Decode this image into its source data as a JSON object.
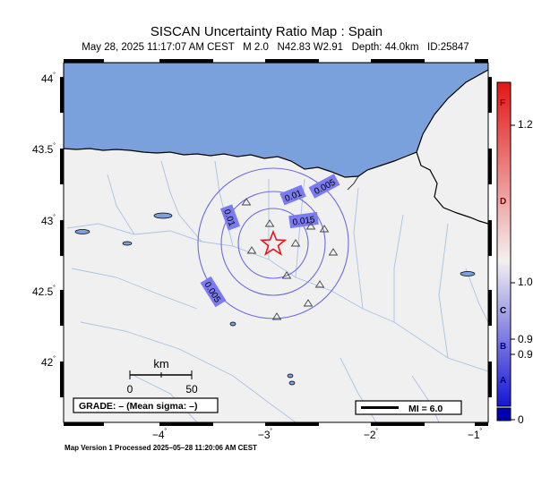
{
  "title": "SISCAN Uncertainty Ratio Map : Spain",
  "subtitle": {
    "date": "May 28, 2025 11:17:07 AM CEST",
    "magnitude": "M 2.0",
    "location": "N42.83 W2.91",
    "depth": "Depth: 44.0km",
    "id": "ID:25847"
  },
  "axes": {
    "y_labels": [
      "44",
      "43.5",
      "43",
      "42.5",
      "42"
    ],
    "x_labels": [
      "−4",
      "−3",
      "−2",
      "−1"
    ],
    "degree_mark": "˚"
  },
  "contours": {
    "labels": [
      "0.005",
      "0.01",
      "0.015",
      "0.01",
      "0.005"
    ]
  },
  "epicenter": {
    "icon": "star-icon",
    "color": "#e8141a"
  },
  "stations": {
    "icon": "triangle-icon",
    "count": 11
  },
  "scale_bar": {
    "unit": "km",
    "min_label": "0",
    "max_label": "50"
  },
  "grade_box": "GRADE: – (Mean sigma: –)",
  "mi_legend": "MI = 6.0",
  "colorbar": {
    "tick_labels": [
      "1.2",
      "1.0",
      "0.9",
      "0.9",
      "0"
    ],
    "letters": [
      "F",
      "D",
      "C",
      "B",
      "A"
    ],
    "colors": {
      "top": "#e41616",
      "mid": "#f4f0f0",
      "bottom": "#1515d6",
      "base": "#0000b0"
    }
  },
  "colors": {
    "sea": "#7aa1dc",
    "land": "#f0f0f0",
    "contour": "#6b6be0",
    "river": "#a8c2e6"
  },
  "footer": "Map Version 1 Processed 2025–05–28 11:20:06 AM CEST"
}
